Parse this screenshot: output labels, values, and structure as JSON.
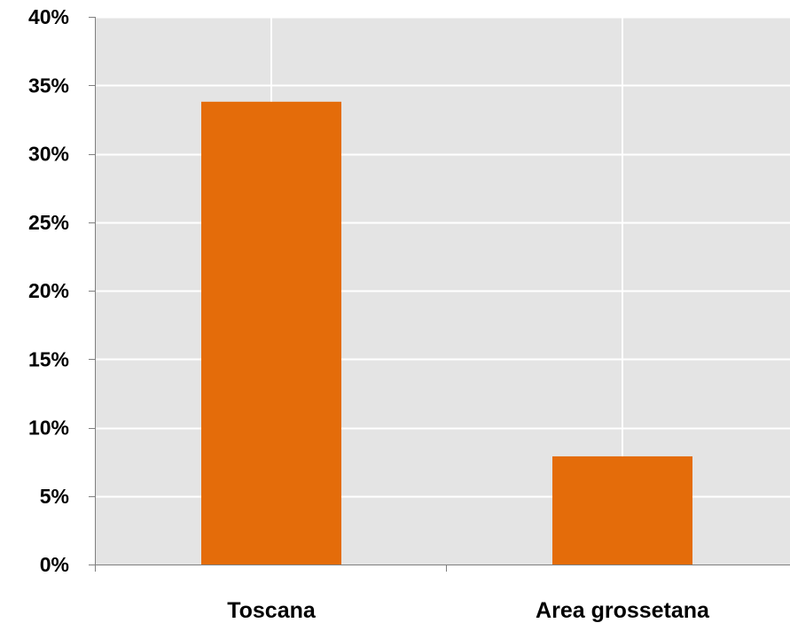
{
  "chart_data": {
    "type": "bar",
    "categories": [
      "Toscana",
      "Area grossetana"
    ],
    "values": [
      33.8,
      7.9
    ],
    "ylim": [
      0,
      40
    ],
    "yticks": [
      0,
      5,
      10,
      15,
      20,
      25,
      30,
      35,
      40
    ],
    "ytick_labels": [
      "0%",
      "5%",
      "10%",
      "15%",
      "20%",
      "25%",
      "30%",
      "35%",
      "40%"
    ],
    "grid": true,
    "bar_color": "#E46C0A",
    "plot_bg": "#E4E4E4",
    "grid_color": "#FFFFFF",
    "axis_color": "#7F7F7F"
  }
}
